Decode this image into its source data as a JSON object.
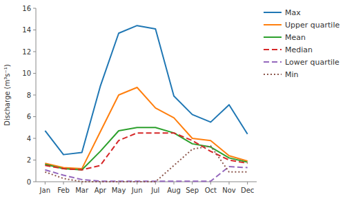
{
  "chart_data": {
    "type": "line",
    "categories": [
      "Jan",
      "Feb",
      "Mar",
      "Apr",
      "May",
      "Jun",
      "Jul",
      "Aug",
      "Sep",
      "Oct",
      "Nov",
      "Dec"
    ],
    "series": [
      {
        "name": "Max",
        "line_style": "solid",
        "values": [
          4.7,
          2.5,
          2.7,
          8.8,
          13.7,
          14.4,
          14.1,
          7.9,
          6.2,
          5.5,
          7.1,
          4.4
        ]
      },
      {
        "name": "Upper quartile",
        "line_style": "solid",
        "values": [
          1.7,
          1.3,
          1.2,
          4.6,
          8.0,
          8.7,
          6.8,
          5.9,
          4.0,
          3.8,
          2.4,
          1.9
        ]
      },
      {
        "name": "Mean",
        "line_style": "solid",
        "values": [
          1.6,
          1.2,
          1.1,
          2.8,
          4.7,
          5.0,
          5.0,
          4.5,
          3.5,
          3.2,
          2.2,
          1.8
        ]
      },
      {
        "name": "Median",
        "line_style": "dashed",
        "values": [
          1.5,
          1.2,
          1.1,
          1.5,
          3.8,
          4.5,
          4.5,
          4.5,
          3.8,
          2.8,
          2.0,
          1.7
        ]
      },
      {
        "name": "Lower quartile",
        "line_style": "dashed",
        "values": [
          1.1,
          0.6,
          0.2,
          0.05,
          0.05,
          0.05,
          0.05,
          0.05,
          0.05,
          0.05,
          1.4,
          1.3
        ]
      },
      {
        "name": "Min",
        "line_style": "dotted",
        "values": [
          0.9,
          0.3,
          0.0,
          0.0,
          0.0,
          0.0,
          0.0,
          1.5,
          3.0,
          3.3,
          0.9,
          0.9
        ]
      }
    ],
    "ylim": [
      0,
      16
    ],
    "yticks": [
      0,
      2,
      4,
      6,
      8,
      10,
      12,
      14,
      16
    ],
    "ylabel": "Discharge (m³s⁻¹)",
    "grid": false,
    "legend": "right"
  }
}
